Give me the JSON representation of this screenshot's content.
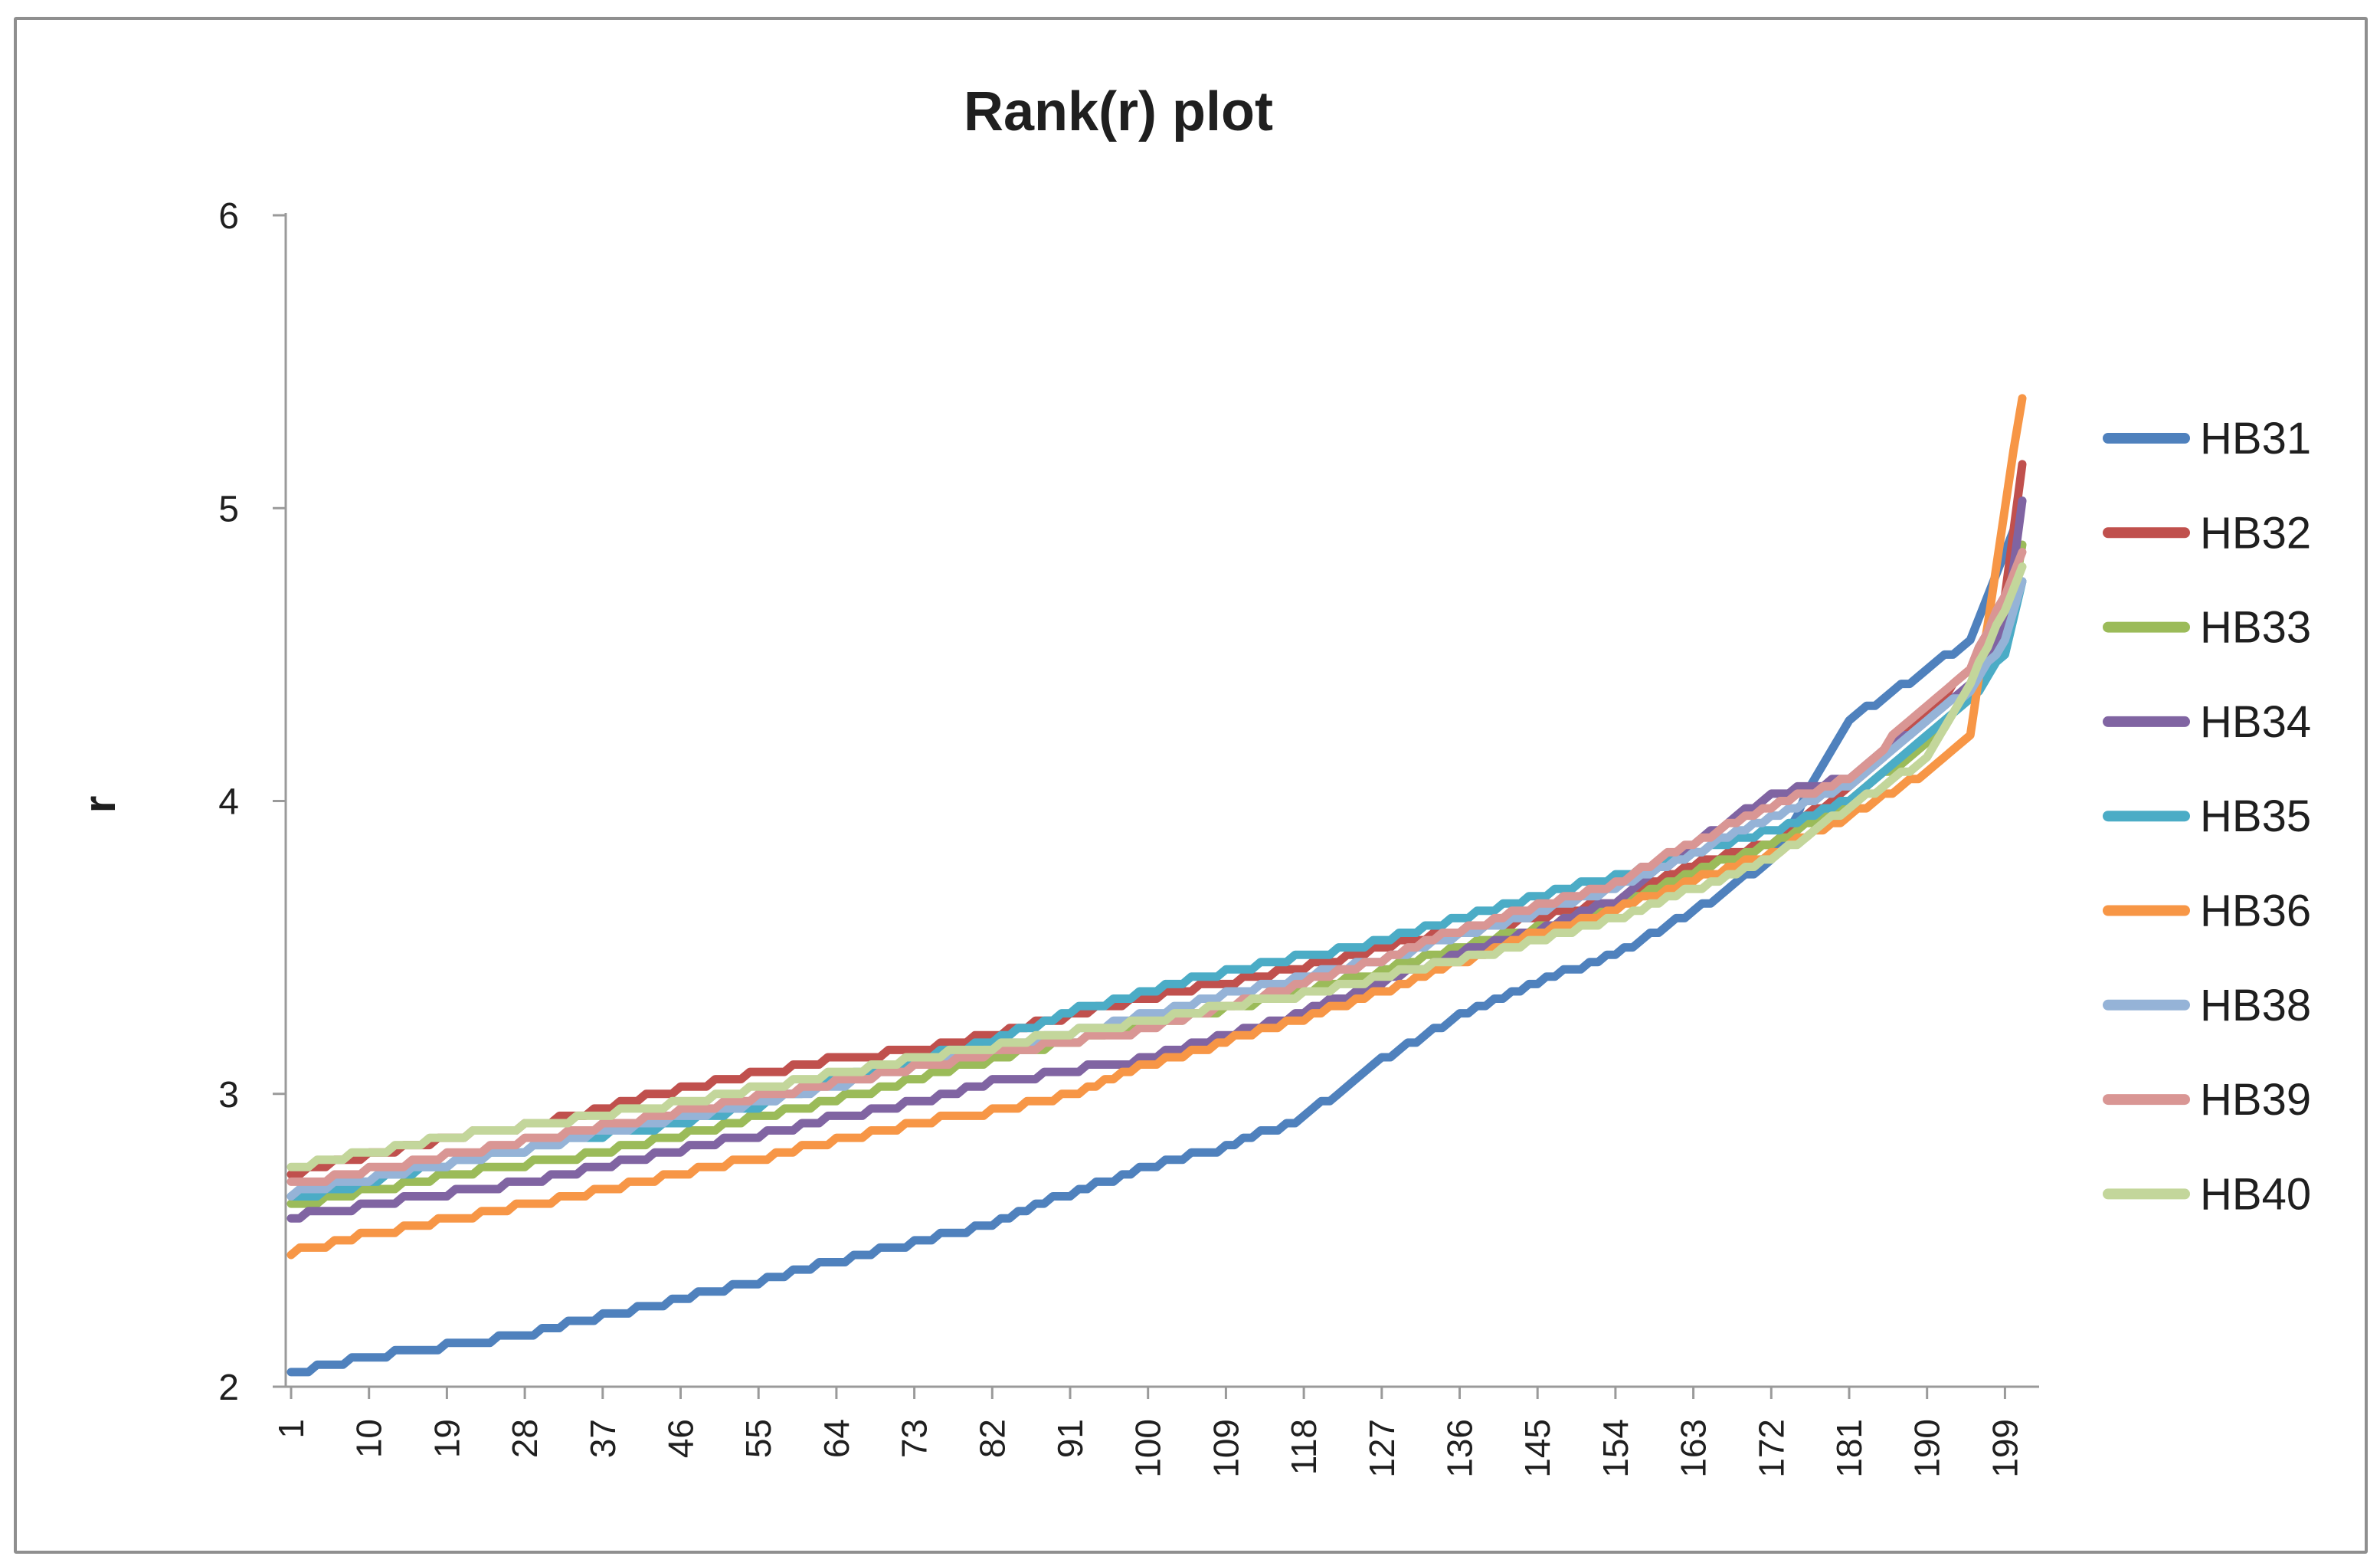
{
  "chart": {
    "title": "Rank(r) plot",
    "y_axis_title": "r",
    "text_color": "#1f1f1f",
    "axis_color": "#9a9a9a",
    "background": "#ffffff"
  },
  "chart_data": {
    "type": "line",
    "title": "Rank(r) plot",
    "xlabel": "",
    "ylabel": "r",
    "ylim": [
      2,
      6
    ],
    "y_ticks": [
      2,
      3,
      4,
      5,
      6
    ],
    "x_tick_labels": [
      "1",
      "10",
      "19",
      "28",
      "37",
      "46",
      "55",
      "64",
      "73",
      "82",
      "91",
      "100",
      "109",
      "118",
      "127",
      "136",
      "145",
      "154",
      "163",
      "172",
      "181",
      "190",
      "199"
    ],
    "x_range": [
      1,
      201
    ],
    "grid": false,
    "legend_position": "right",
    "x": [
      1,
      10,
      19,
      28,
      37,
      46,
      55,
      64,
      73,
      82,
      91,
      100,
      109,
      118,
      127,
      136,
      145,
      154,
      163,
      172,
      181,
      190,
      195,
      199,
      201
    ],
    "series": [
      {
        "name": "HB31",
        "color": "#4F81BD",
        "values": [
          2.05,
          2.1,
          2.14,
          2.18,
          2.24,
          2.3,
          2.36,
          2.43,
          2.49,
          2.56,
          2.66,
          2.75,
          2.82,
          2.92,
          3.12,
          3.27,
          3.38,
          3.48,
          3.62,
          3.8,
          4.28,
          4.45,
          4.55,
          4.85,
          5.02
        ]
      },
      {
        "name": "HB32",
        "color": "#C0504D",
        "values": [
          2.73,
          2.79,
          2.85,
          2.89,
          2.95,
          3.02,
          3.07,
          3.12,
          3.15,
          3.2,
          3.27,
          3.33,
          3.38,
          3.43,
          3.5,
          3.56,
          3.6,
          3.66,
          3.78,
          3.86,
          4.05,
          4.3,
          4.45,
          4.7,
          5.15
        ]
      },
      {
        "name": "HB33",
        "color": "#9BBB59",
        "values": [
          2.62,
          2.67,
          2.72,
          2.76,
          2.8,
          2.86,
          2.92,
          2.98,
          3.05,
          3.12,
          3.18,
          3.24,
          3.29,
          3.35,
          3.42,
          3.5,
          3.57,
          3.64,
          3.76,
          3.85,
          4.0,
          4.2,
          4.35,
          4.55,
          4.87
        ]
      },
      {
        "name": "HB34",
        "color": "#8064A2",
        "values": [
          2.58,
          2.62,
          2.66,
          2.7,
          2.75,
          2.81,
          2.86,
          2.92,
          2.97,
          3.04,
          3.08,
          3.12,
          3.2,
          3.28,
          3.38,
          3.48,
          3.56,
          3.66,
          3.85,
          4.02,
          4.08,
          4.28,
          4.4,
          4.6,
          5.02
        ]
      },
      {
        "name": "HB35",
        "color": "#4BACC6",
        "values": [
          2.64,
          2.7,
          2.76,
          2.81,
          2.86,
          2.9,
          2.96,
          3.05,
          3.12,
          3.18,
          3.28,
          3.35,
          3.42,
          3.47,
          3.52,
          3.6,
          3.68,
          3.74,
          3.82,
          3.9,
          4.0,
          4.22,
          4.35,
          4.5,
          4.76
        ]
      },
      {
        "name": "HB36",
        "color": "#F79646",
        "values": [
          2.46,
          2.52,
          2.57,
          2.62,
          2.67,
          2.73,
          2.78,
          2.84,
          2.9,
          2.94,
          3.0,
          3.1,
          3.18,
          3.26,
          3.35,
          3.45,
          3.55,
          3.63,
          3.73,
          3.82,
          3.95,
          4.1,
          4.22,
          5.0,
          5.38
        ]
      },
      {
        "name": "HB38",
        "color": "#95B3D7",
        "values": [
          2.66,
          2.71,
          2.76,
          2.81,
          2.87,
          2.92,
          2.97,
          3.03,
          3.09,
          3.15,
          3.21,
          3.27,
          3.34,
          3.4,
          3.46,
          3.54,
          3.62,
          3.7,
          3.82,
          3.95,
          4.05,
          4.28,
          4.38,
          4.55,
          4.76
        ]
      },
      {
        "name": "HB39",
        "color": "#D99694",
        "values": [
          2.69,
          2.74,
          2.79,
          2.84,
          2.89,
          2.94,
          2.99,
          3.04,
          3.09,
          3.14,
          3.18,
          3.22,
          3.3,
          3.38,
          3.46,
          3.56,
          3.64,
          3.72,
          3.86,
          3.98,
          4.08,
          4.32,
          4.45,
          4.7,
          4.85
        ]
      },
      {
        "name": "HB40",
        "color": "#C3D69B",
        "values": [
          2.75,
          2.8,
          2.85,
          2.89,
          2.93,
          2.97,
          3.02,
          3.07,
          3.12,
          3.16,
          3.21,
          3.25,
          3.3,
          3.34,
          3.4,
          3.46,
          3.52,
          3.6,
          3.7,
          3.8,
          3.98,
          4.15,
          4.4,
          4.65,
          4.81
        ]
      }
    ]
  }
}
